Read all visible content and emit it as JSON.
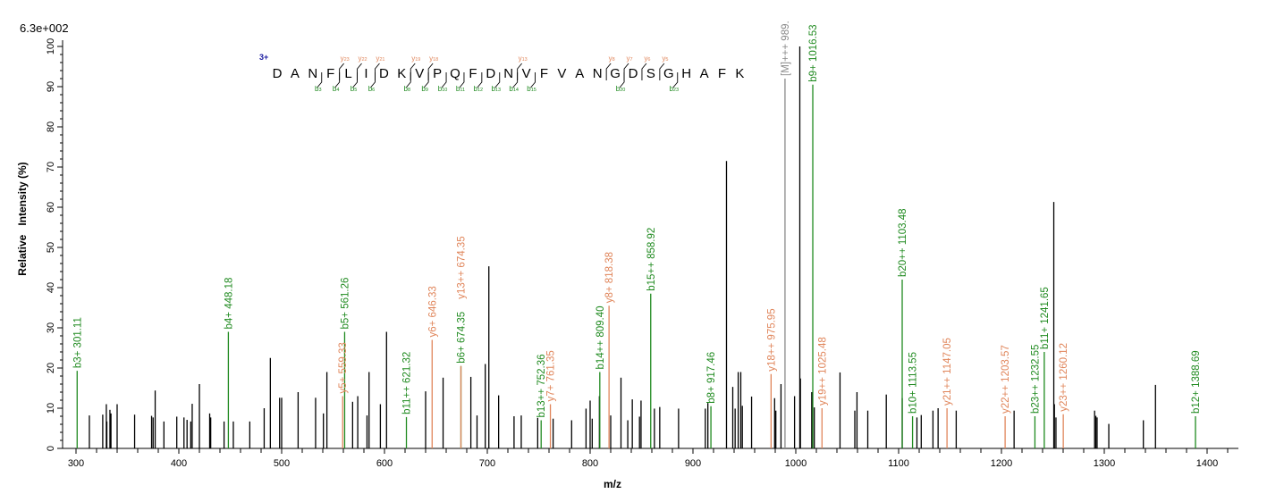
{
  "chart_data": {
    "type": "bar",
    "subtype": "mass-spectrum-sticks",
    "max_intensity_label": "6.3e+002",
    "xlabel": "m/z",
    "ylabel": "Relative   Intensity (%)",
    "xlim": [
      290,
      1430
    ],
    "ylim": [
      0,
      100
    ],
    "xticks": [
      300,
      400,
      500,
      600,
      700,
      800,
      900,
      1000,
      1100,
      1200,
      1300,
      1400
    ],
    "yticks": [
      0,
      10,
      20,
      30,
      40,
      50,
      60,
      70,
      80,
      90,
      100
    ],
    "grid": false,
    "colors": {
      "b": "#1f8a1f",
      "y": "#e0855a",
      "M": "#8a8a8a",
      "unassigned": "#000000",
      "charge": "#1a1aa0"
    },
    "peptide": {
      "charge": "3+",
      "sequence": [
        "D",
        "A",
        "N",
        "F",
        "L",
        "I",
        "D",
        "K",
        "V",
        "P",
        "Q",
        "F",
        "D",
        "N",
        "V",
        "F",
        "V",
        "A",
        "N",
        "G",
        "D",
        "S",
        "G",
        "H",
        "A",
        "F",
        "K"
      ],
      "b_ions": [
        3,
        4,
        5,
        6,
        8,
        9,
        10,
        11,
        12,
        13,
        14,
        15,
        20,
        23
      ],
      "y_ions": [
        23,
        22,
        21,
        19,
        18,
        13,
        8,
        7,
        6,
        5
      ]
    },
    "annotated_peaks": [
      {
        "mz": 301.11,
        "intensity": 19.3,
        "ion": "b",
        "label": "b3+ 301.11"
      },
      {
        "mz": 448.18,
        "intensity": 29,
        "ion": "b",
        "label": "b4+ 448.18"
      },
      {
        "mz": 559.33,
        "intensity": 13,
        "ion": "y",
        "label": "y5+ 559.33"
      },
      {
        "mz": 561.26,
        "intensity": 29,
        "ion": "b",
        "label": "b5+ 561.26"
      },
      {
        "mz": 621.32,
        "intensity": 7.8,
        "ion": "b",
        "label": "b11++ 621.32"
      },
      {
        "mz": 646.33,
        "intensity": 27,
        "ion": "y",
        "label": "y6+ 646.33"
      },
      {
        "mz": 674.35,
        "intensity": 20.5,
        "ion": "b",
        "label": "b6+ 674.35"
      },
      {
        "mz": 674.35,
        "intensity": 20.5,
        "ion": "y",
        "label": "y13++ 674.35"
      },
      {
        "mz": 752.36,
        "intensity": 7,
        "ion": "b",
        "label": "b13++ 752.36"
      },
      {
        "mz": 761.35,
        "intensity": 11,
        "ion": "y",
        "label": "y7+ 761.35"
      },
      {
        "mz": 809.4,
        "intensity": 19,
        "ion": "b",
        "label": "b14++ 809.40"
      },
      {
        "mz": 818.38,
        "intensity": 35.5,
        "ion": "y",
        "label": "y8+ 818.38"
      },
      {
        "mz": 858.92,
        "intensity": 38.5,
        "ion": "b",
        "label": "b15++ 858.92"
      },
      {
        "mz": 917.46,
        "intensity": 10.5,
        "ion": "b",
        "label": "b8+ 917.46"
      },
      {
        "mz": 975.95,
        "intensity": 18.5,
        "ion": "y",
        "label": "y18++ 975.95"
      },
      {
        "mz": 989.5,
        "intensity": 92,
        "ion": "M",
        "label": "[M]+++ 989."
      },
      {
        "mz": 1016.53,
        "intensity": 90.5,
        "ion": "b",
        "label": "b9+ 1016.53"
      },
      {
        "mz": 1025.48,
        "intensity": 10,
        "ion": "y",
        "label": "y19++ 1025.48"
      },
      {
        "mz": 1103.48,
        "intensity": 42,
        "ion": "b",
        "label": "b20++ 1103.48"
      },
      {
        "mz": 1113.55,
        "intensity": 8,
        "ion": "b",
        "label": "b10+ 1113.55"
      },
      {
        "mz": 1147.05,
        "intensity": 10,
        "ion": "y",
        "label": "y21++ 1147.05"
      },
      {
        "mz": 1203.57,
        "intensity": 8,
        "ion": "y",
        "label": "y22++ 1203.57"
      },
      {
        "mz": 1232.55,
        "intensity": 8,
        "ion": "b",
        "label": "b23++ 1232.55"
      },
      {
        "mz": 1241.65,
        "intensity": 24,
        "ion": "b",
        "label": "b11+ 1241.65"
      },
      {
        "mz": 1260.12,
        "intensity": 8.5,
        "ion": "y",
        "label": "y23++ 1260.12"
      },
      {
        "mz": 1388.69,
        "intensity": 8,
        "ion": "b",
        "label": "b12+ 1388.69"
      }
    ],
    "unassigned_peaks": [
      [
        313,
        8.2
      ],
      [
        326,
        8.4
      ],
      [
        329.5,
        11
      ],
      [
        330,
        6.7
      ],
      [
        333,
        9.6
      ],
      [
        334,
        8.7
      ],
      [
        340,
        11
      ],
      [
        357,
        8.4
      ],
      [
        373.5,
        8.1
      ],
      [
        375,
        7.7
      ],
      [
        377,
        14.4
      ],
      [
        385.5,
        6.7
      ],
      [
        398,
        7.9
      ],
      [
        405,
        7.7
      ],
      [
        408,
        7.1
      ],
      [
        411.6,
        6.7
      ],
      [
        413,
        11.1
      ],
      [
        420,
        16
      ],
      [
        430,
        8.7
      ],
      [
        431,
        7.7
      ],
      [
        444,
        6.7
      ],
      [
        453,
        6.7
      ],
      [
        469,
        6.7
      ],
      [
        483,
        10
      ],
      [
        489,
        22.5
      ],
      [
        498,
        12.6
      ],
      [
        500,
        12.6
      ],
      [
        516,
        14
      ],
      [
        533,
        12.6
      ],
      [
        540.6,
        8.7
      ],
      [
        544,
        19
      ],
      [
        569,
        11.6
      ],
      [
        574,
        13
      ],
      [
        583,
        8.2
      ],
      [
        585,
        19
      ],
      [
        596,
        11
      ],
      [
        602,
        29
      ],
      [
        640,
        14.2
      ],
      [
        657,
        17.6
      ],
      [
        684,
        17.8
      ],
      [
        690,
        8.2
      ],
      [
        698,
        21
      ],
      [
        701.5,
        45.3
      ],
      [
        711,
        13.2
      ],
      [
        726,
        8
      ],
      [
        733,
        8.2
      ],
      [
        749,
        7.6
      ],
      [
        764,
        7.4
      ],
      [
        782,
        7
      ],
      [
        796,
        9.9
      ],
      [
        800,
        11.9
      ],
      [
        802,
        7.4
      ],
      [
        809,
        13
      ],
      [
        820,
        8.2
      ],
      [
        830,
        17.6
      ],
      [
        836.6,
        7
      ],
      [
        841,
        12.2
      ],
      [
        848,
        7.9
      ],
      [
        849.5,
        11.9
      ],
      [
        862.5,
        9.9
      ],
      [
        867.7,
        10.3
      ],
      [
        886,
        9.9
      ],
      [
        912,
        9.9
      ],
      [
        914.5,
        11.3
      ],
      [
        932.6,
        71.5
      ],
      [
        938.7,
        15.3
      ],
      [
        941,
        9.9
      ],
      [
        944,
        19
      ],
      [
        946.5,
        19
      ],
      [
        948,
        10.6
      ],
      [
        957,
        12.9
      ],
      [
        979.4,
        12.5
      ],
      [
        980.6,
        9.4
      ],
      [
        985.6,
        16
      ],
      [
        998.8,
        13
      ],
      [
        1003.9,
        100
      ],
      [
        1004.5,
        17.4
      ],
      [
        1015.5,
        14
      ],
      [
        1018,
        10.2
      ],
      [
        1043,
        18.9
      ],
      [
        1057.4,
        9.4
      ],
      [
        1059.5,
        14
      ],
      [
        1070,
        9.4
      ],
      [
        1088,
        13.4
      ],
      [
        1103.5,
        12.5
      ],
      [
        1117.8,
        7.7
      ],
      [
        1122,
        8.3
      ],
      [
        1133.4,
        9.4
      ],
      [
        1138.4,
        10
      ],
      [
        1156,
        9.4
      ],
      [
        1212.3,
        9.4
      ],
      [
        1250.9,
        61.3
      ],
      [
        1251.5,
        11
      ],
      [
        1253,
        7.7
      ],
      [
        1290.6,
        9.4
      ],
      [
        1291.8,
        8.1
      ],
      [
        1293,
        7.7
      ],
      [
        1304.4,
        6.1
      ],
      [
        1338,
        7
      ],
      [
        1349.8,
        15.8
      ]
    ]
  }
}
